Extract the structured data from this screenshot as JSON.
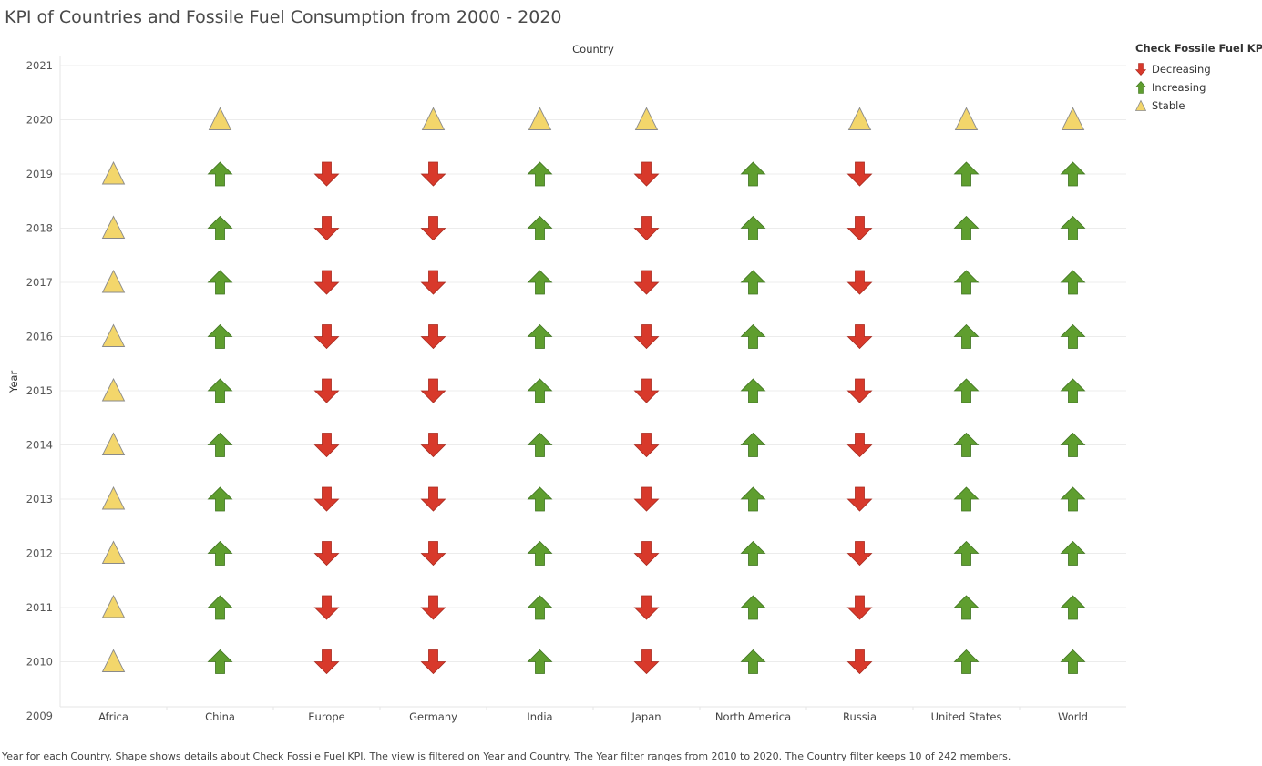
{
  "title": "KPI of Countries and Fossile Fuel Consumption from 2000 - 2020",
  "caption": "Year for each Country.  Shape shows details about Check Fossile Fuel KPI. The view is filtered on Year and Country. The Year filter ranges from 2010 to 2020. The Country filter keeps 10 of 242 members.",
  "legend": {
    "title": "Check Fossile Fuel KPI",
    "items": [
      {
        "label": "Decreasing",
        "shape": "arrow-down",
        "color": "#d8392b"
      },
      {
        "label": "Increasing",
        "shape": "arrow-up",
        "color": "#5f9e2f"
      },
      {
        "label": "Stable",
        "shape": "triangle",
        "color": "#f3d66b"
      }
    ]
  },
  "chart_data": {
    "type": "table",
    "xlabel": "Country",
    "ylabel": "Year",
    "x_position": "top",
    "categories": [
      "Africa",
      "China",
      "Europe",
      "Germany",
      "India",
      "Japan",
      "North America",
      "Russia",
      "United States",
      "World"
    ],
    "years": [
      2009,
      2010,
      2011,
      2012,
      2013,
      2014,
      2015,
      2016,
      2017,
      2018,
      2019,
      2020,
      2021
    ],
    "ylim": [
      2009,
      2021
    ],
    "grid": true,
    "legend_position": "top-right",
    "kpi_by_country": {
      "Africa": {
        "2010": "Stable",
        "2011": "Stable",
        "2012": "Stable",
        "2013": "Stable",
        "2014": "Stable",
        "2015": "Stable",
        "2016": "Stable",
        "2017": "Stable",
        "2018": "Stable",
        "2019": "Stable"
      },
      "China": {
        "2010": "Increasing",
        "2011": "Increasing",
        "2012": "Increasing",
        "2013": "Increasing",
        "2014": "Increasing",
        "2015": "Increasing",
        "2016": "Increasing",
        "2017": "Increasing",
        "2018": "Increasing",
        "2019": "Increasing",
        "2020": "Stable"
      },
      "Europe": {
        "2010": "Decreasing",
        "2011": "Decreasing",
        "2012": "Decreasing",
        "2013": "Decreasing",
        "2014": "Decreasing",
        "2015": "Decreasing",
        "2016": "Decreasing",
        "2017": "Decreasing",
        "2018": "Decreasing",
        "2019": "Decreasing"
      },
      "Germany": {
        "2010": "Decreasing",
        "2011": "Decreasing",
        "2012": "Decreasing",
        "2013": "Decreasing",
        "2014": "Decreasing",
        "2015": "Decreasing",
        "2016": "Decreasing",
        "2017": "Decreasing",
        "2018": "Decreasing",
        "2019": "Decreasing",
        "2020": "Stable"
      },
      "India": {
        "2010": "Increasing",
        "2011": "Increasing",
        "2012": "Increasing",
        "2013": "Increasing",
        "2014": "Increasing",
        "2015": "Increasing",
        "2016": "Increasing",
        "2017": "Increasing",
        "2018": "Increasing",
        "2019": "Increasing",
        "2020": "Stable"
      },
      "Japan": {
        "2010": "Decreasing",
        "2011": "Decreasing",
        "2012": "Decreasing",
        "2013": "Decreasing",
        "2014": "Decreasing",
        "2015": "Decreasing",
        "2016": "Decreasing",
        "2017": "Decreasing",
        "2018": "Decreasing",
        "2019": "Decreasing",
        "2020": "Stable"
      },
      "North America": {
        "2010": "Increasing",
        "2011": "Increasing",
        "2012": "Increasing",
        "2013": "Increasing",
        "2014": "Increasing",
        "2015": "Increasing",
        "2016": "Increasing",
        "2017": "Increasing",
        "2018": "Increasing",
        "2019": "Increasing"
      },
      "Russia": {
        "2010": "Decreasing",
        "2011": "Decreasing",
        "2012": "Decreasing",
        "2013": "Decreasing",
        "2014": "Decreasing",
        "2015": "Decreasing",
        "2016": "Decreasing",
        "2017": "Decreasing",
        "2018": "Decreasing",
        "2019": "Decreasing",
        "2020": "Stable"
      },
      "United States": {
        "2010": "Increasing",
        "2011": "Increasing",
        "2012": "Increasing",
        "2013": "Increasing",
        "2014": "Increasing",
        "2015": "Increasing",
        "2016": "Increasing",
        "2017": "Increasing",
        "2018": "Increasing",
        "2019": "Increasing",
        "2020": "Stable"
      },
      "World": {
        "2010": "Increasing",
        "2011": "Increasing",
        "2012": "Increasing",
        "2013": "Increasing",
        "2014": "Increasing",
        "2015": "Increasing",
        "2016": "Increasing",
        "2017": "Increasing",
        "2018": "Increasing",
        "2019": "Increasing",
        "2020": "Stable"
      }
    }
  }
}
